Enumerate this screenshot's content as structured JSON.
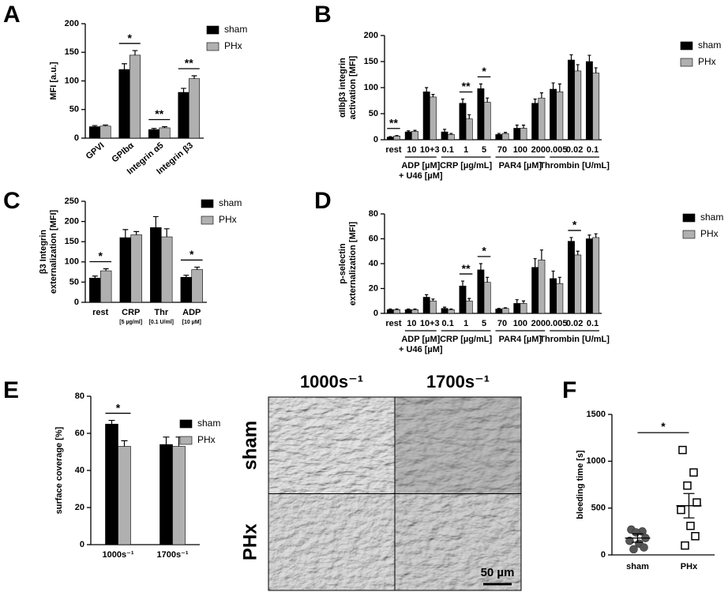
{
  "chart_data": [
    {
      "type": "bar",
      "panel": "A",
      "ylabel": [
        "MFI [a.u.]"
      ],
      "categories": [
        "GPVI",
        "GPIbα",
        "Integrin α5",
        "Integrin β3"
      ],
      "series": [
        {
          "name": "sham",
          "color": "#000000",
          "values": [
            20,
            120,
            15,
            80
          ],
          "errors": [
            2,
            10,
            2,
            7
          ]
        },
        {
          "name": "PHx",
          "color": "#b0b0b0",
          "values": [
            21,
            145,
            18,
            104
          ],
          "errors": [
            2,
            8,
            2,
            5
          ]
        }
      ],
      "significance": [
        null,
        "*",
        "**",
        "**"
      ],
      "ylim": [
        0,
        200
      ],
      "yticks": [
        0,
        50,
        100,
        150,
        200
      ],
      "legend": "upper right"
    },
    {
      "type": "bar",
      "panel": "B",
      "ylabel": [
        "αIIbβ3 integrin",
        "activation [MFI]"
      ],
      "categories": [
        "rest",
        "10",
        "10+3",
        "0.1",
        "1",
        "5",
        "70",
        "100",
        "200",
        "0.005",
        "0.02",
        "0.1"
      ],
      "group_labels": [
        null,
        "ADP [µM]",
        null,
        "CRP [µg/mL]",
        null,
        null,
        "PAR4 [µM]",
        null,
        null,
        "Thrombin [U/mL]",
        null,
        null
      ],
      "group_sublabels": [
        null,
        "+ U46 [µM]",
        null,
        null,
        null,
        null,
        null,
        null,
        null,
        null,
        null,
        null
      ],
      "series": [
        {
          "name": "sham",
          "color": "#000000",
          "values": [
            5,
            15,
            92,
            15,
            70,
            98,
            10,
            22,
            70,
            97,
            153,
            150
          ],
          "errors": [
            1,
            2,
            8,
            5,
            8,
            9,
            2,
            6,
            8,
            12,
            10,
            12
          ]
        },
        {
          "name": "PHx",
          "color": "#b0b0b0",
          "values": [
            7,
            16,
            82,
            10,
            40,
            72,
            12,
            22,
            80,
            92,
            132,
            128
          ],
          "errors": [
            1,
            2,
            5,
            2,
            8,
            8,
            2,
            6,
            10,
            15,
            12,
            10
          ]
        }
      ],
      "significance": [
        "**",
        null,
        null,
        null,
        "**",
        "*",
        null,
        null,
        null,
        null,
        null,
        null
      ],
      "ylim": [
        0,
        200
      ],
      "yticks": [
        0,
        50,
        100,
        150,
        200
      ],
      "legend": "upper right"
    },
    {
      "type": "bar",
      "panel": "C",
      "ylabel": [
        "β3 Integrin",
        "externalization [MFI]"
      ],
      "categories": [
        "rest",
        "CRP",
        "Thr",
        "ADP"
      ],
      "category_sublabels": [
        null,
        "[5 µg/ml]",
        "[0.1 U/ml]",
        "[10 µM]"
      ],
      "series": [
        {
          "name": "sham",
          "color": "#000000",
          "values": [
            60,
            160,
            185,
            62
          ],
          "errors": [
            5,
            20,
            27,
            5
          ]
        },
        {
          "name": "PHx",
          "color": "#b0b0b0",
          "values": [
            78,
            167,
            162,
            81
          ],
          "errors": [
            5,
            8,
            20,
            6
          ]
        }
      ],
      "significance": [
        "*",
        null,
        null,
        "*"
      ],
      "ylim": [
        0,
        250
      ],
      "yticks": [
        0,
        50,
        100,
        150,
        200,
        250
      ],
      "legend": "upper right"
    },
    {
      "type": "bar",
      "panel": "D",
      "ylabel": [
        "p-selectin",
        "externalization [MFI]"
      ],
      "categories": [
        "rest",
        "10",
        "10+3",
        "0.1",
        "1",
        "5",
        "70",
        "100",
        "200",
        "0.005",
        "0.02",
        "0.1"
      ],
      "group_labels": [
        null,
        "ADP [µM]",
        null,
        "CRP [µg/mL]",
        null,
        null,
        "PAR4 [µM]",
        null,
        null,
        "Thrombin [U/mL]",
        null,
        null
      ],
      "group_sublabels": [
        null,
        "+ U46 [µM]",
        null,
        null,
        null,
        null,
        null,
        null,
        null,
        null,
        null,
        null
      ],
      "series": [
        {
          "name": "sham",
          "color": "#000000",
          "values": [
            3,
            3,
            13,
            4,
            22,
            35,
            3.5,
            8,
            37,
            28,
            58,
            60
          ],
          "errors": [
            0.5,
            0.5,
            2,
            1,
            4,
            5,
            0.5,
            3,
            7,
            6,
            3,
            3
          ]
        },
        {
          "name": "PHx",
          "color": "#b0b0b0",
          "values": [
            3,
            3,
            10,
            3,
            10,
            25,
            4,
            8,
            43,
            24,
            47,
            61
          ],
          "errors": [
            0.5,
            0.5,
            1.5,
            0.5,
            2,
            4,
            0.5,
            2,
            8,
            5,
            3,
            3
          ]
        }
      ],
      "significance": [
        null,
        null,
        null,
        null,
        "**",
        "*",
        null,
        null,
        null,
        null,
        "*",
        null
      ],
      "ylim": [
        0,
        80
      ],
      "yticks": [
        0,
        20,
        40,
        60,
        80
      ],
      "legend": "upper right"
    },
    {
      "type": "bar",
      "panel": "E",
      "ylabel": [
        "surface coverage [%]"
      ],
      "categories": [
        "1000s⁻¹",
        "1700s⁻¹"
      ],
      "series": [
        {
          "name": "sham",
          "color": "#000000",
          "values": [
            65,
            54
          ],
          "errors": [
            2,
            4
          ]
        },
        {
          "name": "PHx",
          "color": "#b0b0b0",
          "values": [
            53,
            53
          ],
          "errors": [
            3,
            5
          ]
        }
      ],
      "significance": [
        "*",
        null
      ],
      "ylim": [
        0,
        80
      ],
      "yticks": [
        0,
        20,
        40,
        60,
        80
      ],
      "legend": "upper right"
    },
    {
      "type": "image_grid",
      "columns": [
        "1000s⁻¹",
        "1700s⁻¹"
      ],
      "rows": [
        "sham",
        "PHx"
      ],
      "scale_bar": "50 µm"
    },
    {
      "type": "dot",
      "panel": "F",
      "ylabel": [
        "bleeding time [s]"
      ],
      "categories": [
        "sham",
        "PHx"
      ],
      "points": [
        [
          270,
          250,
          240,
          180,
          150,
          120,
          80,
          60
        ],
        [
          1120,
          880,
          740,
          560,
          480,
          310,
          200,
          100
        ]
      ],
      "means": [
        180,
        525
      ],
      "errors": [
        45,
        130
      ],
      "colors": [
        "#555555",
        "#ffffff"
      ],
      "markers": [
        "circle",
        "square"
      ],
      "significance": "*",
      "ylim": [
        0,
        1500
      ],
      "yticks": [
        0,
        500,
        1000,
        1500
      ]
    }
  ]
}
